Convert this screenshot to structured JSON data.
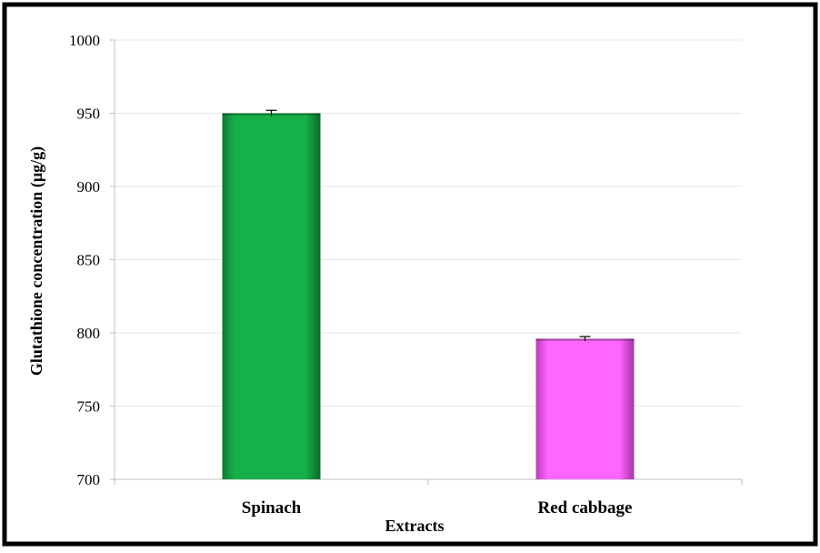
{
  "chart_data": {
    "type": "bar",
    "categories": [
      "Spinach",
      "Red cabbage"
    ],
    "values": [
      950,
      796
    ],
    "errors": [
      2,
      1.5
    ],
    "colors": [
      "#16b04a",
      "#ff66ff"
    ],
    "title": "",
    "xlabel": "Extracts",
    "ylabel": "Glutathione  concentration  (µg/g)",
    "ylim": [
      700,
      1000
    ],
    "yticks": [
      700,
      750,
      800,
      850,
      900,
      950,
      1000
    ],
    "grid": true
  }
}
